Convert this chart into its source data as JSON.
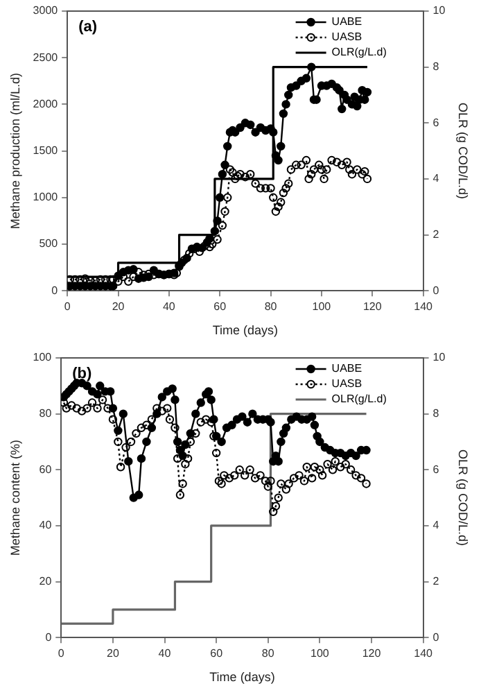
{
  "chart_data": [
    {
      "type": "line",
      "title": "(a)",
      "xlabel": "Time (days)",
      "ylabel": "Methane production (ml/L.d)",
      "y2label": "OLR (g COD/L.d)",
      "xlim": [
        0,
        140
      ],
      "xticks": [
        0,
        20,
        40,
        60,
        80,
        100,
        120,
        140
      ],
      "ylim": [
        0,
        3000
      ],
      "yticks": [
        0,
        500,
        1000,
        1500,
        2000,
        2500,
        3000
      ],
      "y2lim": [
        0,
        10
      ],
      "y2ticks": [
        0,
        2,
        4,
        6,
        8,
        10
      ],
      "grid": false,
      "legend": "top right",
      "series": [
        {
          "name": "UABE",
          "color": "#000000",
          "marker": "circle",
          "line_style": "solid",
          "x": [
            1,
            3,
            5,
            7,
            9,
            11,
            13,
            15,
            17,
            18,
            20,
            22,
            24,
            26,
            28,
            30,
            32,
            34,
            36,
            38,
            40,
            42,
            44,
            45,
            47,
            49,
            51,
            53,
            55,
            56,
            58,
            59,
            60,
            61,
            62,
            63,
            64,
            65,
            66,
            68,
            70,
            72,
            74,
            76,
            78,
            80,
            81,
            82,
            83,
            84,
            85,
            86,
            87,
            88,
            90,
            92,
            94,
            96,
            97,
            98,
            100,
            102,
            104,
            106,
            107,
            108,
            109,
            110,
            112,
            113,
            114,
            115,
            116,
            117,
            118
          ],
          "values": [
            50,
            50,
            50,
            50,
            50,
            50,
            50,
            50,
            50,
            50,
            160,
            200,
            220,
            230,
            130,
            140,
            150,
            220,
            180,
            170,
            180,
            190,
            270,
            300,
            350,
            450,
            470,
            460,
            520,
            560,
            640,
            750,
            1000,
            1250,
            1350,
            1550,
            1700,
            1720,
            1700,
            1750,
            1800,
            1780,
            1700,
            1750,
            1720,
            1740,
            1700,
            1450,
            1400,
            1550,
            1900,
            2000,
            2100,
            2180,
            2200,
            2250,
            2280,
            2400,
            2050,
            2050,
            2200,
            2200,
            2220,
            2180,
            2150,
            1950,
            2100,
            2050,
            2000,
            2080,
            1980,
            2050,
            2150,
            2050,
            2130
          ]
        },
        {
          "name": "UASB",
          "color": "#000000",
          "marker": "circle",
          "line_style": "dotted",
          "x": [
            1,
            3,
            5,
            7,
            9,
            11,
            13,
            15,
            17,
            18,
            20,
            22,
            24,
            26,
            28,
            30,
            32,
            34,
            36,
            38,
            40,
            42,
            43,
            44,
            46,
            48,
            50,
            52,
            54,
            56,
            57,
            59,
            61,
            62,
            63,
            64,
            65,
            66,
            67,
            68,
            70,
            72,
            74,
            76,
            78,
            80,
            81,
            82,
            83,
            84,
            85,
            86,
            87,
            88,
            90,
            92,
            94,
            95,
            96,
            97,
            99,
            100,
            101,
            102,
            104,
            106,
            108,
            110,
            111,
            112,
            114,
            116,
            117,
            118
          ],
          "values": [
            120,
            120,
            120,
            130,
            110,
            110,
            120,
            120,
            120,
            120,
            100,
            150,
            100,
            150,
            200,
            170,
            180,
            170,
            180,
            170,
            180,
            170,
            190,
            260,
            330,
            400,
            450,
            420,
            480,
            470,
            500,
            550,
            700,
            850,
            1000,
            1300,
            1270,
            1200,
            1230,
            1250,
            1220,
            1250,
            1150,
            1100,
            1100,
            1100,
            1000,
            850,
            900,
            950,
            1050,
            1100,
            1150,
            1300,
            1350,
            1350,
            1400,
            1200,
            1250,
            1300,
            1350,
            1300,
            1200,
            1300,
            1400,
            1380,
            1350,
            1380,
            1300,
            1250,
            1300,
            1250,
            1280,
            1200
          ]
        },
        {
          "name": "OLR(g/L.d)",
          "type": "step",
          "axis": "y2",
          "color": "#000000",
          "marker": "none",
          "line_style": "solid",
          "x": [
            0,
            20,
            44,
            58,
            81,
            118
          ],
          "values": [
            0.5,
            1,
            2,
            4,
            8,
            8
          ]
        }
      ]
    },
    {
      "type": "line",
      "title": "(b)",
      "xlabel": "Time (days)",
      "ylabel": "Methane content (%)",
      "y2label": "OLR (g COD/L.d)",
      "xlim": [
        0,
        140
      ],
      "xticks": [
        0,
        20,
        40,
        60,
        80,
        100,
        120,
        140
      ],
      "ylim": [
        0,
        100
      ],
      "yticks": [
        0,
        20,
        40,
        60,
        80,
        100
      ],
      "y2lim": [
        0,
        10
      ],
      "y2ticks": [
        0,
        2,
        4,
        6,
        8,
        10
      ],
      "grid": false,
      "legend": "top right",
      "series": [
        {
          "name": "UABE",
          "color": "#000000",
          "marker": "circle",
          "line_style": "solid",
          "x": [
            1,
            2,
            3,
            4,
            5,
            6,
            8,
            10,
            12,
            14,
            15,
            17,
            19,
            20,
            22,
            24,
            26,
            28,
            30,
            31,
            33,
            35,
            37,
            39,
            41,
            43,
            44,
            45,
            46,
            47,
            48,
            50,
            52,
            54,
            56,
            57,
            58,
            59,
            60,
            62,
            64,
            66,
            68,
            70,
            72,
            74,
            76,
            78,
            80,
            81,
            82,
            83,
            84,
            85,
            86,
            87,
            89,
            91,
            93,
            95,
            97,
            98,
            99,
            100,
            102,
            104,
            106,
            108,
            110,
            112,
            114,
            116,
            118
          ],
          "values": [
            86,
            87,
            88,
            89,
            90,
            91,
            91,
            90,
            88,
            87,
            90,
            88,
            88,
            82,
            74,
            80,
            63,
            50,
            51,
            64,
            70,
            75,
            80,
            86,
            88,
            89,
            85,
            70,
            67,
            65,
            69,
            73,
            80,
            84,
            87,
            88,
            85,
            78,
            72,
            70,
            75,
            76,
            78,
            79,
            77,
            80,
            78,
            78,
            78,
            77,
            63,
            65,
            63,
            70,
            73,
            75,
            78,
            79,
            78,
            78,
            79,
            76,
            72,
            70,
            68,
            67,
            66,
            66,
            65,
            66,
            65,
            67,
            67
          ]
        },
        {
          "name": "UASB",
          "color": "#000000",
          "marker": "circle",
          "line_style": "dotted",
          "x": [
            1,
            2,
            4,
            6,
            8,
            10,
            12,
            14,
            16,
            18,
            20,
            22,
            23,
            25,
            27,
            29,
            31,
            33,
            35,
            37,
            39,
            41,
            42,
            44,
            45,
            46,
            47,
            48,
            49,
            50,
            52,
            54,
            56,
            58,
            59,
            60,
            61,
            62,
            63,
            65,
            67,
            69,
            71,
            73,
            75,
            77,
            79,
            80,
            81,
            82,
            83,
            84,
            85,
            87,
            88,
            90,
            92,
            94,
            95,
            97,
            98,
            100,
            101,
            103,
            105,
            106,
            108,
            110,
            112,
            114,
            116,
            118
          ],
          "values": [
            84,
            82,
            83,
            82,
            81,
            82,
            84,
            82,
            85,
            82,
            78,
            70,
            61,
            68,
            70,
            73,
            75,
            76,
            78,
            82,
            81,
            82,
            78,
            75,
            64,
            51,
            55,
            62,
            64,
            70,
            73,
            77,
            78,
            77,
            72,
            66,
            56,
            55,
            58,
            57,
            58,
            60,
            58,
            60,
            57,
            58,
            56,
            54,
            56,
            45,
            47,
            50,
            55,
            53,
            55,
            57,
            58,
            56,
            61,
            57,
            61,
            60,
            58,
            62,
            60,
            63,
            61,
            62,
            60,
            58,
            57,
            55
          ]
        },
        {
          "name": "OLR(g/L.d)",
          "type": "step",
          "axis": "y2",
          "color": "#666666",
          "marker": "none",
          "line_style": "solid",
          "x": [
            0,
            20,
            44,
            58,
            81,
            118
          ],
          "values": [
            0.5,
            1,
            2,
            4,
            8,
            8
          ]
        }
      ]
    }
  ]
}
